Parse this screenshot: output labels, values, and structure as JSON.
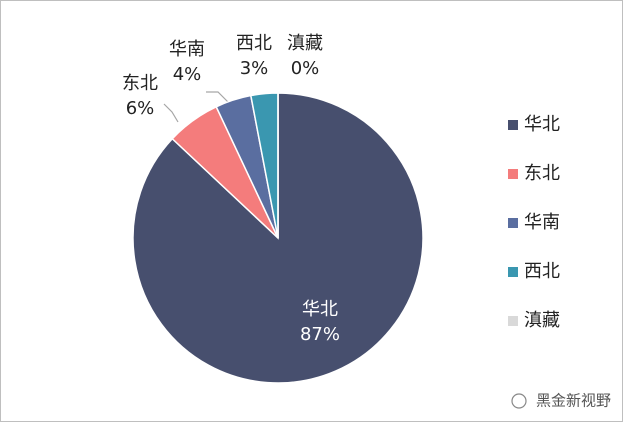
{
  "chart_data": {
    "type": "pie",
    "categories": [
      "华北",
      "东北",
      "华南",
      "西北",
      "滇藏"
    ],
    "values": [
      87,
      6,
      4,
      3,
      0
    ],
    "value_labels": [
      "87%",
      "6%",
      "4%",
      "3%",
      "0%"
    ],
    "colors": [
      "#474f6e",
      "#f47c7c",
      "#5a6ea0",
      "#3a97b0",
      "#d9d9d9"
    ],
    "legend": "right"
  },
  "watermark": "黑金新视野"
}
